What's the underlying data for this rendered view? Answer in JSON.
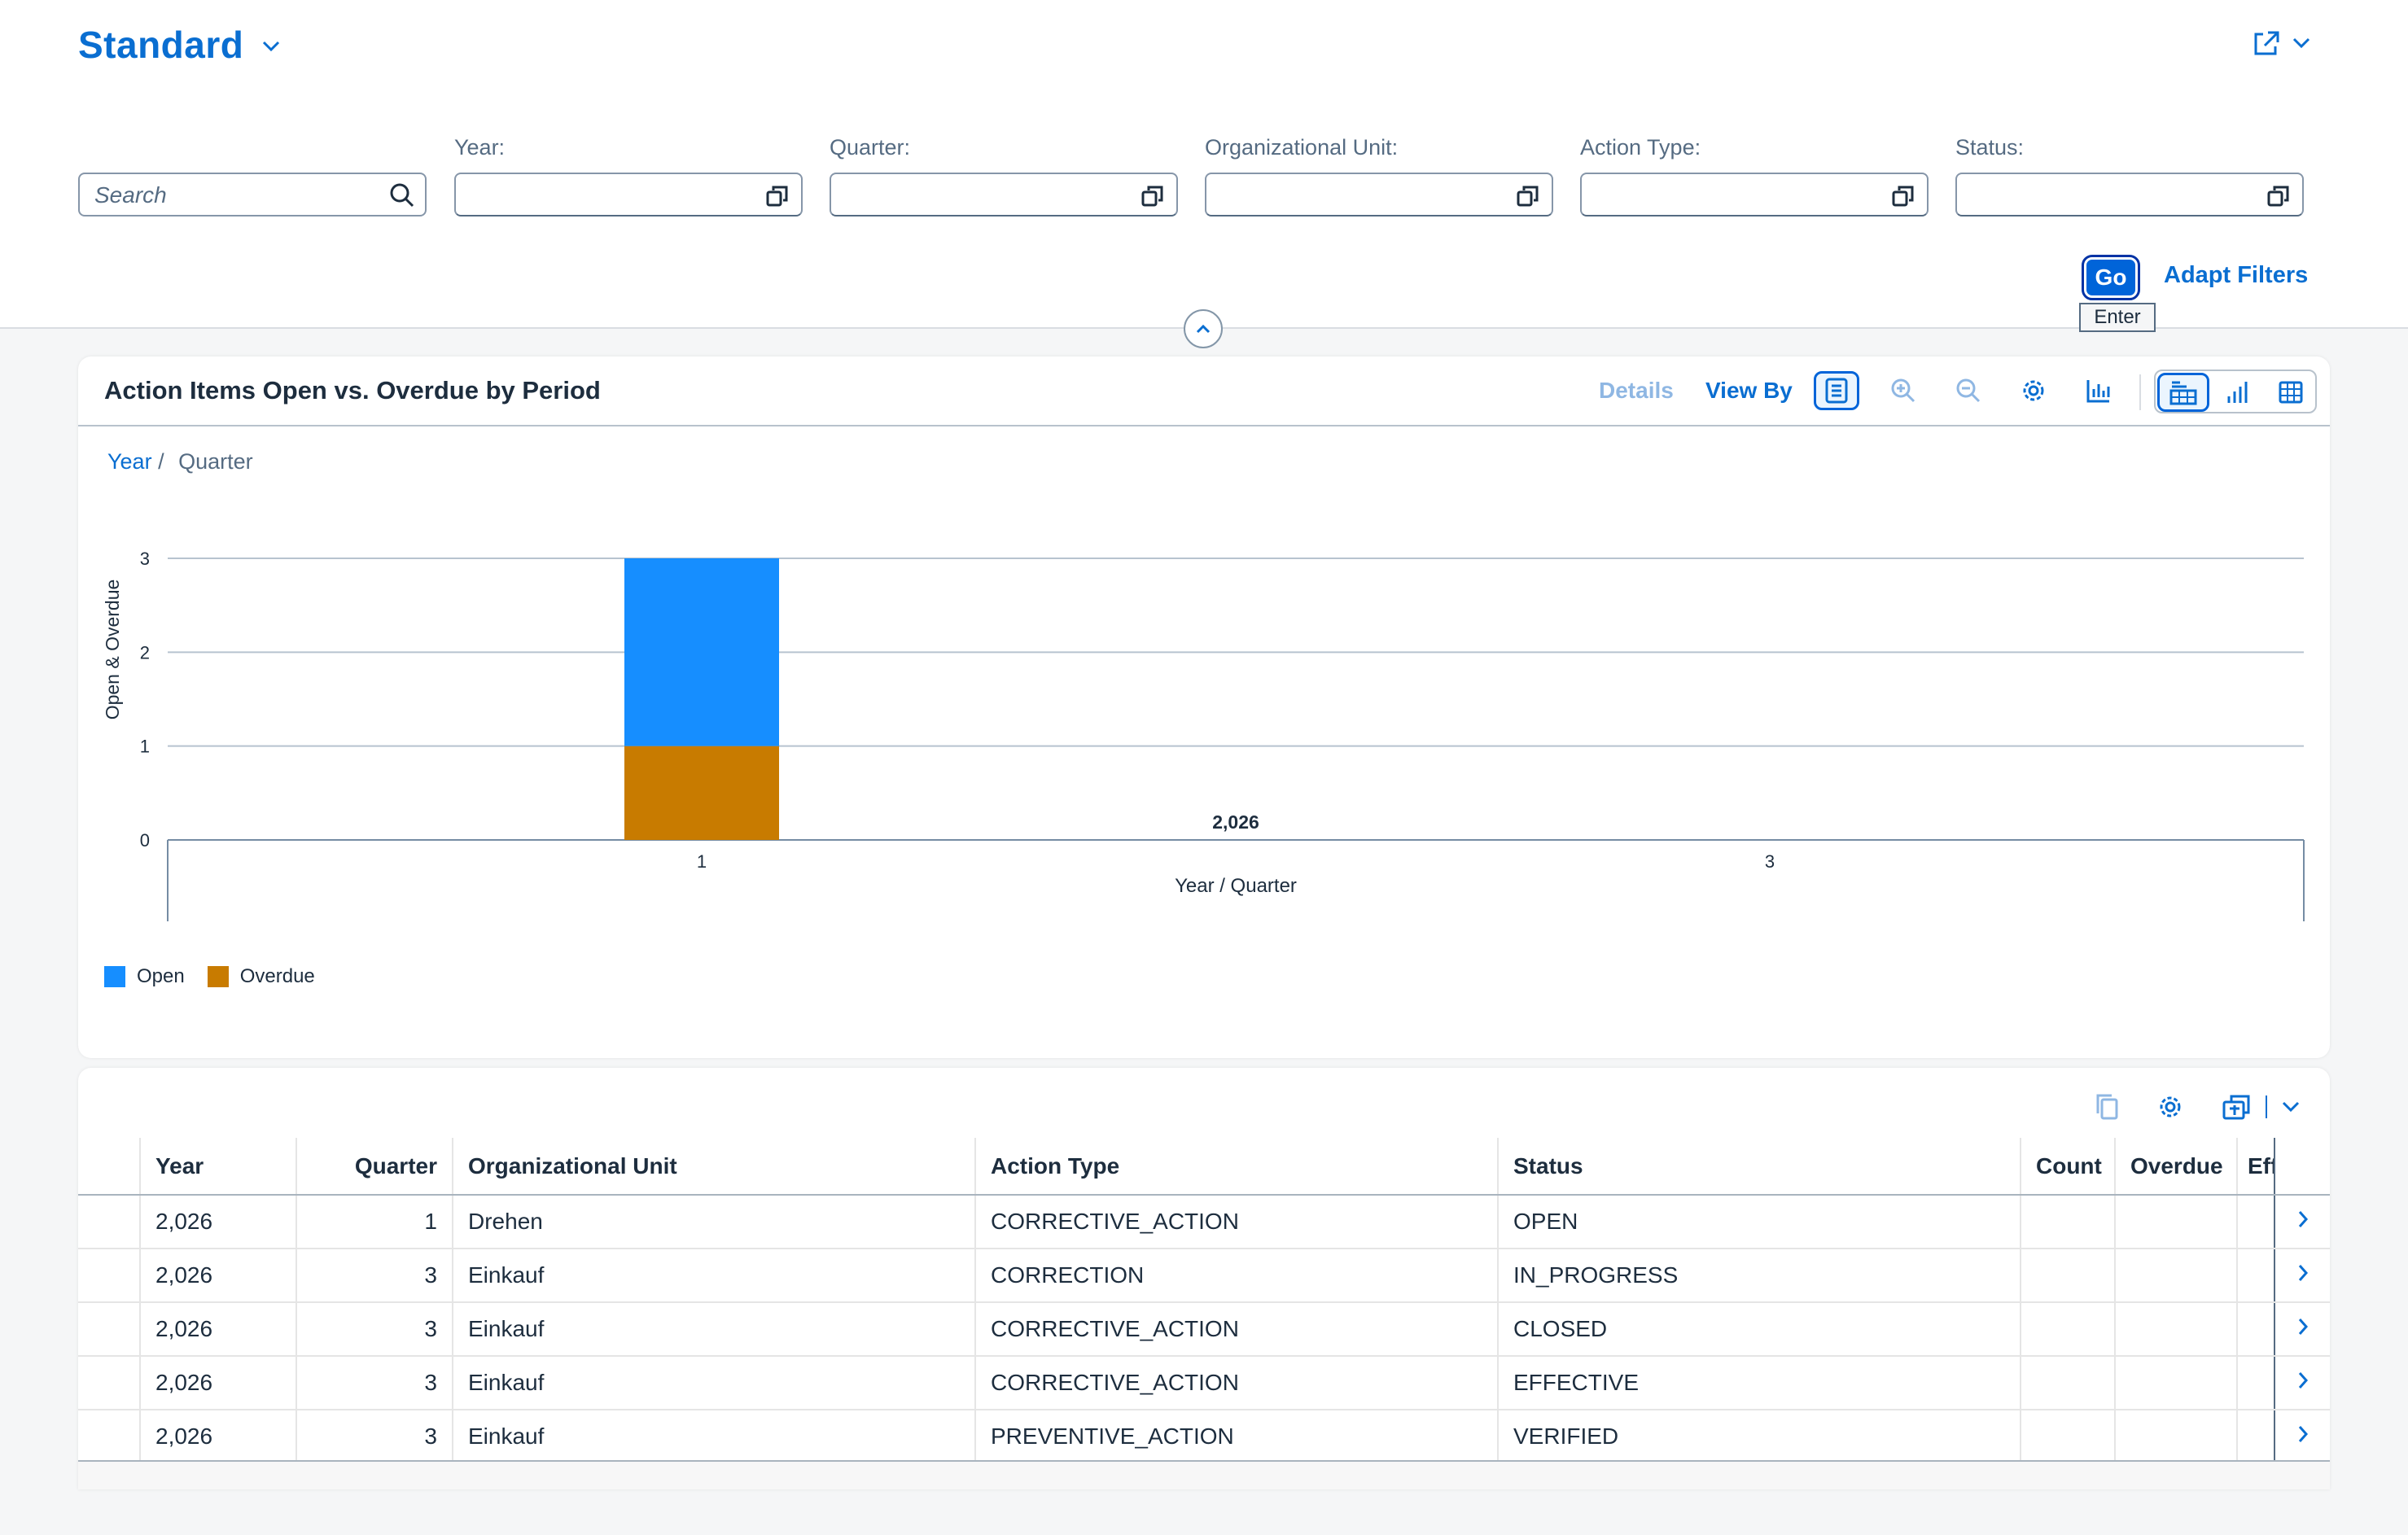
{
  "header": {
    "variant_title": "Standard",
    "search_placeholder": "Search",
    "filters": [
      {
        "label": "Year:",
        "value": ""
      },
      {
        "label": "Quarter:",
        "value": ""
      },
      {
        "label": "Organizational Unit:",
        "value": ""
      },
      {
        "label": "Action Type:",
        "value": ""
      },
      {
        "label": "Status:",
        "value": ""
      }
    ],
    "go_label": "Go",
    "go_tooltip": "Enter",
    "adapt_filters_label": "Adapt Filters"
  },
  "chart_card": {
    "title": "Action Items Open vs. Overdue by Period",
    "details_label": "Details",
    "view_by_label": "View By",
    "breadcrumb": {
      "link": "Year",
      "separator": "/",
      "current": "Quarter"
    }
  },
  "chart_data": {
    "type": "bar",
    "stacked": true,
    "title": "",
    "categories": [
      "1",
      "3"
    ],
    "category_group": "2,026",
    "series": [
      {
        "name": "Overdue",
        "values": [
          1,
          0
        ],
        "color": "#c87b00"
      },
      {
        "name": "Open",
        "values": [
          2,
          0
        ],
        "color": "#168eff"
      }
    ],
    "xlabel": "Year / Quarter",
    "ylabel": "Open & Overdue",
    "ylim": [
      0,
      3
    ],
    "yticks": [
      "0",
      "1",
      "2",
      "3"
    ],
    "grid": true,
    "legend": [
      {
        "name": "Open",
        "color": "#168eff"
      },
      {
        "name": "Overdue",
        "color": "#c87b00"
      }
    ],
    "legend_position": "bottom-left"
  },
  "table": {
    "columns": [
      "Year",
      "Quarter",
      "Organizational Unit",
      "Action Type",
      "Status",
      "Count",
      "Overdue",
      "Eff"
    ],
    "rows": [
      {
        "year": "2,026",
        "quarter": "1",
        "org_unit": "Drehen",
        "action_type": "CORRECTIVE_ACTION",
        "status": "OPEN",
        "count": "",
        "overdue": "",
        "eff": ""
      },
      {
        "year": "2,026",
        "quarter": "3",
        "org_unit": "Einkauf",
        "action_type": "CORRECTION",
        "status": "IN_PROGRESS",
        "count": "",
        "overdue": "",
        "eff": ""
      },
      {
        "year": "2,026",
        "quarter": "3",
        "org_unit": "Einkauf",
        "action_type": "CORRECTIVE_ACTION",
        "status": "CLOSED",
        "count": "",
        "overdue": "",
        "eff": ""
      },
      {
        "year": "2,026",
        "quarter": "3",
        "org_unit": "Einkauf",
        "action_type": "CORRECTIVE_ACTION",
        "status": "EFFECTIVE",
        "count": "",
        "overdue": "",
        "eff": ""
      },
      {
        "year": "2,026",
        "quarter": "3",
        "org_unit": "Einkauf",
        "action_type": "PREVENTIVE_ACTION",
        "status": "VERIFIED",
        "count": "",
        "overdue": "",
        "eff": ""
      }
    ]
  },
  "colors": {
    "accent": "#0a6ed1",
    "button": "#0064d9"
  }
}
